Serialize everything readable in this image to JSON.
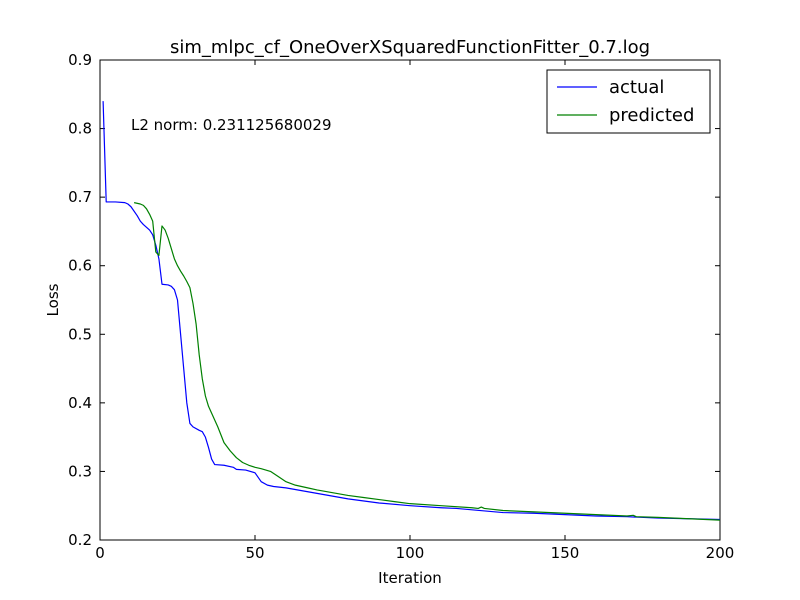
{
  "chart_data": {
    "type": "line",
    "title": "sim_mlpc_cf_OneOverXSquaredFunctionFitter_0.7.log",
    "xlabel": "Iteration",
    "ylabel": "Loss",
    "xlim": [
      0,
      200
    ],
    "ylim": [
      0.2,
      0.9
    ],
    "x_ticks": [
      0,
      50,
      100,
      150,
      200
    ],
    "y_ticks": [
      0.2,
      0.3,
      0.4,
      0.5,
      0.6,
      0.7,
      0.8,
      0.9
    ],
    "x_tick_labels": [
      "0",
      "50",
      "100",
      "150",
      "200"
    ],
    "y_tick_labels": [
      "0.2",
      "0.3",
      "0.4",
      "0.5",
      "0.6",
      "0.7",
      "0.8",
      "0.9"
    ],
    "grid": false,
    "legend_position": "top-right",
    "annotation": "L2 norm: 0.231125680029",
    "series": [
      {
        "name": "actual",
        "color": "#0000ff",
        "points": [
          [
            1,
            0.84
          ],
          [
            2,
            0.693
          ],
          [
            5,
            0.693
          ],
          [
            8,
            0.692
          ],
          [
            9,
            0.69
          ],
          [
            10,
            0.686
          ],
          [
            12,
            0.673
          ],
          [
            13,
            0.665
          ],
          [
            14,
            0.66
          ],
          [
            16,
            0.652
          ],
          [
            17,
            0.645
          ],
          [
            18,
            0.63
          ],
          [
            19,
            0.61
          ],
          [
            20,
            0.573
          ],
          [
            22,
            0.572
          ],
          [
            23,
            0.57
          ],
          [
            24,
            0.565
          ],
          [
            25,
            0.55
          ],
          [
            26,
            0.5
          ],
          [
            27,
            0.45
          ],
          [
            28,
            0.4
          ],
          [
            29,
            0.37
          ],
          [
            30,
            0.365
          ],
          [
            32,
            0.36
          ],
          [
            33,
            0.358
          ],
          [
            34,
            0.35
          ],
          [
            35,
            0.335
          ],
          [
            36,
            0.318
          ],
          [
            37,
            0.31
          ],
          [
            40,
            0.309
          ],
          [
            43,
            0.306
          ],
          [
            44,
            0.303
          ],
          [
            47,
            0.302
          ],
          [
            50,
            0.298
          ],
          [
            52,
            0.285
          ],
          [
            54,
            0.28
          ],
          [
            56,
            0.278
          ],
          [
            60,
            0.276
          ],
          [
            65,
            0.272
          ],
          [
            70,
            0.268
          ],
          [
            75,
            0.264
          ],
          [
            80,
            0.26
          ],
          [
            90,
            0.254
          ],
          [
            100,
            0.25
          ],
          [
            110,
            0.247
          ],
          [
            115,
            0.246
          ],
          [
            120,
            0.244
          ],
          [
            125,
            0.242
          ],
          [
            130,
            0.24
          ],
          [
            140,
            0.239
          ],
          [
            150,
            0.237
          ],
          [
            160,
            0.235
          ],
          [
            170,
            0.234
          ],
          [
            180,
            0.232
          ],
          [
            190,
            0.231
          ],
          [
            200,
            0.23
          ]
        ]
      },
      {
        "name": "predicted",
        "color": "#008000",
        "points": [
          [
            11,
            0.692
          ],
          [
            13,
            0.69
          ],
          [
            14,
            0.688
          ],
          [
            15,
            0.683
          ],
          [
            16,
            0.675
          ],
          [
            17,
            0.665
          ],
          [
            18,
            0.62
          ],
          [
            19,
            0.615
          ],
          [
            20,
            0.658
          ],
          [
            21,
            0.652
          ],
          [
            22,
            0.64
          ],
          [
            23,
            0.625
          ],
          [
            24,
            0.61
          ],
          [
            25,
            0.6
          ],
          [
            26,
            0.592
          ],
          [
            27,
            0.585
          ],
          [
            28,
            0.577
          ],
          [
            29,
            0.568
          ],
          [
            30,
            0.545
          ],
          [
            31,
            0.515
          ],
          [
            32,
            0.47
          ],
          [
            33,
            0.435
          ],
          [
            34,
            0.41
          ],
          [
            35,
            0.395
          ],
          [
            36,
            0.385
          ],
          [
            37,
            0.375
          ],
          [
            38,
            0.365
          ],
          [
            40,
            0.342
          ],
          [
            42,
            0.33
          ],
          [
            44,
            0.32
          ],
          [
            46,
            0.313
          ],
          [
            48,
            0.309
          ],
          [
            50,
            0.306
          ],
          [
            52,
            0.304
          ],
          [
            55,
            0.3
          ],
          [
            57,
            0.294
          ],
          [
            60,
            0.285
          ],
          [
            63,
            0.28
          ],
          [
            67,
            0.276
          ],
          [
            70,
            0.273
          ],
          [
            75,
            0.269
          ],
          [
            80,
            0.265
          ],
          [
            85,
            0.262
          ],
          [
            90,
            0.259
          ],
          [
            95,
            0.256
          ],
          [
            100,
            0.253
          ],
          [
            110,
            0.25
          ],
          [
            120,
            0.247
          ],
          [
            122,
            0.246
          ],
          [
            123,
            0.248
          ],
          [
            124,
            0.246
          ],
          [
            130,
            0.243
          ],
          [
            140,
            0.241
          ],
          [
            150,
            0.239
          ],
          [
            160,
            0.237
          ],
          [
            170,
            0.235
          ],
          [
            172,
            0.236
          ],
          [
            173,
            0.234
          ],
          [
            180,
            0.233
          ],
          [
            190,
            0.231
          ],
          [
            200,
            0.229
          ]
        ]
      }
    ]
  }
}
